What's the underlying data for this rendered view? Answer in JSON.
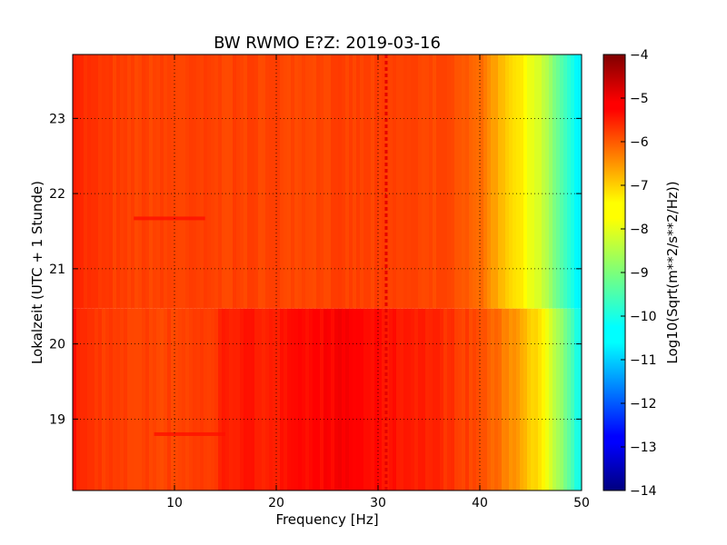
{
  "chart_data": {
    "type": "heatmap",
    "title": "BW RWMO E?Z: 2019-03-16",
    "xlabel": "Frequency [Hz]",
    "ylabel": "Lokalzeit (UTC + 1 Stunde)",
    "xlim": [
      0,
      50
    ],
    "ylim": [
      23.85,
      18.05
    ],
    "x_ticks": [
      10,
      20,
      30,
      40,
      50
    ],
    "y_ticks": [
      19,
      20,
      21,
      22,
      23
    ],
    "grid": true,
    "grid_style": "dotted",
    "colormap": "jet",
    "colorbar": {
      "label": "Log10(Sqrt(m**2/s**2/Hz))",
      "min": -14,
      "max": -4,
      "ticks": [
        -4,
        -5,
        -6,
        -7,
        -8,
        -9,
        -10,
        -11,
        -12,
        -13,
        -14
      ]
    },
    "regime_change_time": 20.47,
    "spectrum_profile": [
      {
        "x": 0,
        "before": -5.4,
        "after": -5.4
      },
      {
        "x": 1,
        "before": -5.7,
        "after": -5.7
      },
      {
        "x": 5,
        "before": -5.9,
        "after": -5.9
      },
      {
        "x": 10,
        "before": -5.9,
        "after": -5.9
      },
      {
        "x": 14,
        "before": -5.9,
        "after": -5.8
      },
      {
        "x": 15,
        "before": -5.9,
        "after": -5.5
      },
      {
        "x": 20,
        "before": -5.9,
        "after": -5.5
      },
      {
        "x": 24,
        "before": -5.9,
        "after": -5.3
      },
      {
        "x": 27,
        "before": -5.9,
        "after": -5.2
      },
      {
        "x": 30,
        "before": -5.9,
        "after": -5.4
      },
      {
        "x": 34,
        "before": -5.9,
        "after": -5.5
      },
      {
        "x": 38,
        "before": -6.0,
        "after": -5.8
      },
      {
        "x": 40,
        "before": -6.3,
        "after": -6.0
      },
      {
        "x": 42,
        "before": -7.0,
        "after": -6.4
      },
      {
        "x": 44,
        "before": -7.6,
        "after": -6.8
      },
      {
        "x": 46,
        "before": -8.2,
        "after": -7.6
      },
      {
        "x": 48,
        "before": -9.4,
        "after": -8.8
      },
      {
        "x": 49.5,
        "before": -10.3,
        "after": -10.0
      },
      {
        "x": 50,
        "before": -10.5,
        "after": -10.2
      }
    ],
    "features": [
      {
        "type": "horizontal_streak",
        "y": 18.8,
        "x_range": [
          8,
          15
        ],
        "value": -5.4
      },
      {
        "type": "horizontal_streak",
        "y": 21.67,
        "x_range": [
          6,
          13
        ],
        "value": -5.4
      },
      {
        "type": "dashed_line",
        "x": 30.8,
        "y_range": [
          18.05,
          23.85
        ],
        "value": -5.0
      }
    ]
  }
}
